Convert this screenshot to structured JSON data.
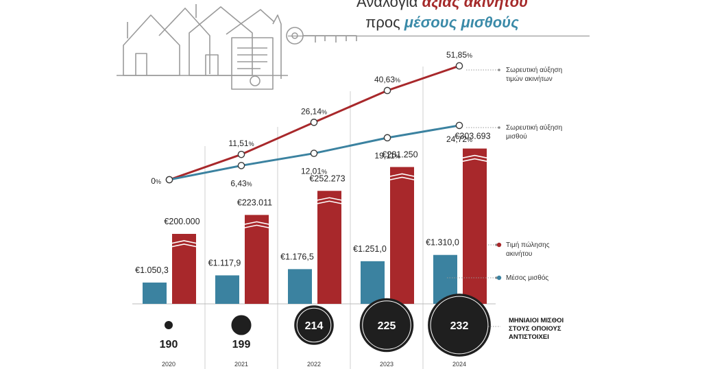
{
  "title": {
    "line1_prefix": "Αναλογία",
    "line1_highlight": "αξίας ακινήτου",
    "line2_prefix": "προς",
    "line2_highlight": "μέσους μισθούς"
  },
  "chart_data": {
    "type": "line+bar",
    "years": [
      "2020",
      "2021",
      "2022",
      "2023",
      "2024"
    ],
    "cumulative_property_increase_pct": {
      "name": "Σωρευτική αύξηση τιμών ακινήτων",
      "values": [
        0,
        11.51,
        26.14,
        40.63,
        51.85
      ],
      "labels": [
        "0",
        "11,51",
        "26,14",
        "40,63",
        "51,85"
      ],
      "color": "#a8282b"
    },
    "cumulative_salary_increase_pct": {
      "name": "Σωρευτική αύξηση μισθού",
      "values": [
        0,
        6.43,
        12.01,
        19.11,
        24.72
      ],
      "labels": [
        "0",
        "6,43",
        "12,01",
        "19,11",
        "24,72"
      ],
      "color": "#3b82a0"
    },
    "property_price": {
      "name": "Τιμή πώλησης ακινήτου",
      "values": [
        200000,
        223011,
        252273,
        281250,
        303693
      ],
      "labels": [
        "€200.000",
        "€223.011",
        "€252.273",
        "€281.250",
        "€303.693"
      ],
      "color": "#a8282b"
    },
    "average_salary": {
      "name": "Μέσος μισθός",
      "values": [
        1050.3,
        1117.9,
        1176.5,
        1251.0,
        1310.0
      ],
      "labels": [
        "€1.050,3",
        "€1.117,9",
        "€1.176,5",
        "€1.251,0",
        "€1.310,0"
      ],
      "color": "#3b82a0"
    },
    "monthly_salaries_equivalent": {
      "name": "ΜΗΝΙΑΙΟΙ ΜΙΣΘΟΙ ΣΤΟΥΣ ΟΠΟΙΟΥΣ ΑΝΤΙΣΤΟΙΧΕΙ",
      "values": [
        190,
        199,
        214,
        225,
        232
      ]
    }
  },
  "legend": {
    "property_increase_line1": "Σωρευτική αύξηση",
    "property_increase_line2": "τιμών ακινήτων",
    "salary_increase_line1": "Σωρευτική αύξηση",
    "salary_increase_line2": "μισθού",
    "property_price_line1": "Τιμή πώλησης",
    "property_price_line2": "ακινήτου",
    "average_salary": "Μέσος μισθός",
    "circles_note_line1": "ΜΗΝΙΑΙΟΙ ΜΙΣΘΟΙ",
    "circles_note_line2": "ΣΤΟΥΣ ΟΠΟΙΟΥΣ",
    "circles_note_line3": "ΑΝΤΙΣΤΟΙΧΕΙ"
  },
  "percent_sign": "%",
  "colors": {
    "red": "#a8282b",
    "blue": "#3b82a0",
    "circle": "#1f1f1f"
  }
}
